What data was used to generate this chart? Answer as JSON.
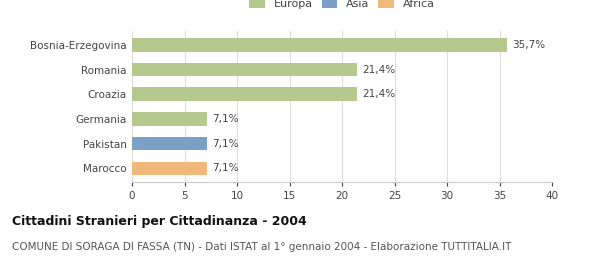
{
  "categories": [
    "Bosnia-Erzegovina",
    "Romania",
    "Croazia",
    "Germania",
    "Pakistan",
    "Marocco"
  ],
  "values": [
    35.7,
    21.4,
    21.4,
    7.1,
    7.1,
    7.1
  ],
  "labels": [
    "35,7%",
    "21,4%",
    "21,4%",
    "7,1%",
    "7,1%",
    "7,1%"
  ],
  "colors": [
    "#b5c98e",
    "#b5c98e",
    "#b5c98e",
    "#b5c98e",
    "#7b9fc7",
    "#f0b87a"
  ],
  "legend": [
    {
      "label": "Europa",
      "color": "#b5c98e"
    },
    {
      "label": "Asia",
      "color": "#7b9fc7"
    },
    {
      "label": "Africa",
      "color": "#f0b87a"
    }
  ],
  "xlim": [
    0,
    40
  ],
  "xticks": [
    0,
    5,
    10,
    15,
    20,
    25,
    30,
    35,
    40
  ],
  "title": "Cittadini Stranieri per Cittadinanza - 2004",
  "subtitle": "COMUNE DI SORAGA DI FASSA (TN) - Dati ISTAT al 1° gennaio 2004 - Elaborazione TUTTITALIA.IT",
  "background_color": "#ffffff",
  "bar_height": 0.55,
  "grid_color": "#dddddd",
  "title_fontsize": 9,
  "subtitle_fontsize": 7.5,
  "label_fontsize": 7.5,
  "tick_fontsize": 7.5,
  "legend_fontsize": 8
}
